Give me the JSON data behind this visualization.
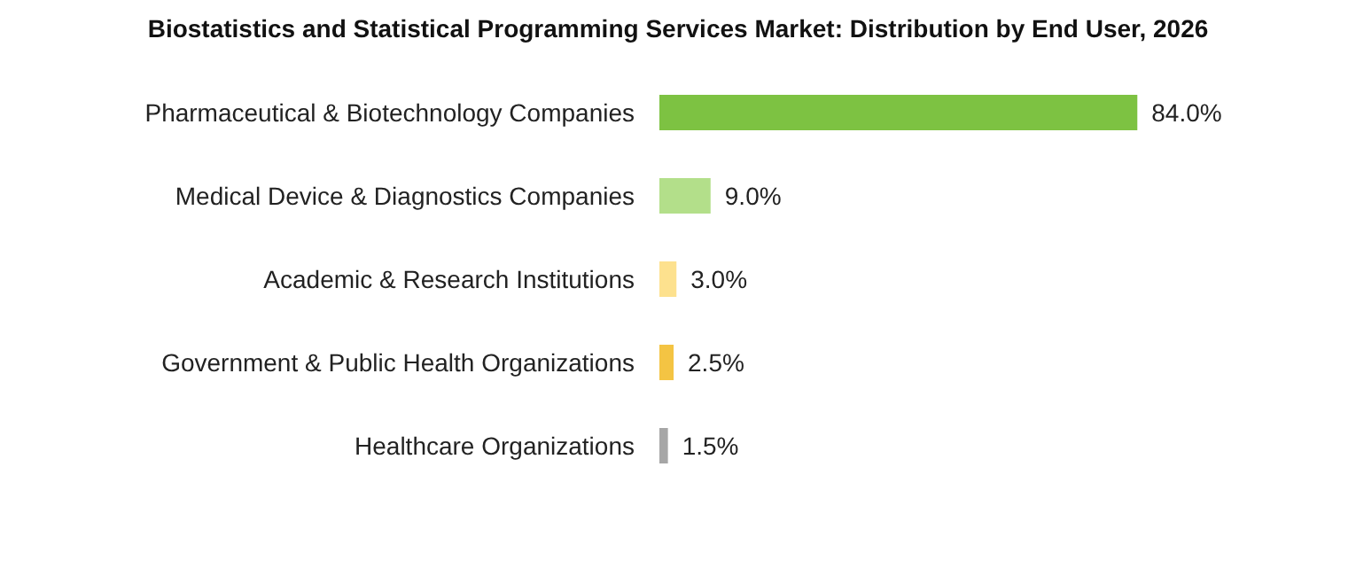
{
  "chart_data": {
    "type": "bar",
    "orientation": "horizontal",
    "title": "Biostatistics and Statistical Programming Services Market: Distribution by End User, 2026",
    "categories": [
      "Pharmaceutical & Biotechnology Companies",
      "Medical Device & Diagnostics Companies",
      "Academic & Research Institutions",
      "Government & Public Health Organizations",
      "Healthcare Organizations"
    ],
    "values": [
      84.0,
      9.0,
      3.0,
      2.5,
      1.5
    ],
    "colors": [
      "#7dc242",
      "#b3df8a",
      "#fde18e",
      "#f4c443",
      "#a6a6a6"
    ],
    "value_labels": [
      "84.0%",
      "9.0%",
      "3.0%",
      "2.5%",
      "1.5%"
    ]
  }
}
